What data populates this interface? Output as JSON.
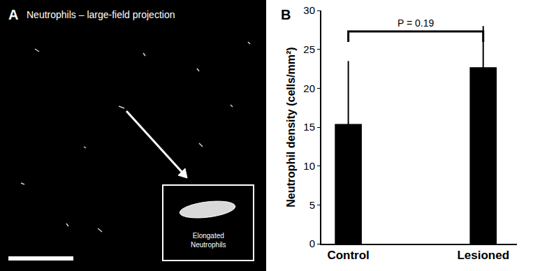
{
  "chart_data": {
    "type": "bar",
    "panel_label": "B",
    "categories": [
      "Control",
      "Lesioned"
    ],
    "values": [
      15.4,
      22.7
    ],
    "error_bars": [
      8.1,
      5.3
    ],
    "color": "#000000",
    "y_label": "Neutrophil density (cells/mm²)",
    "ylim": [
      0,
      30
    ],
    "yticks": [
      0,
      5,
      10,
      15,
      20,
      25,
      30
    ],
    "grid": false,
    "annotations": [
      "P = 0.19"
    ]
  },
  "image_panel": {
    "label": "A",
    "title": "Neutrophils – large-field projection",
    "inset_label": "Elongated Neutrophils"
  }
}
